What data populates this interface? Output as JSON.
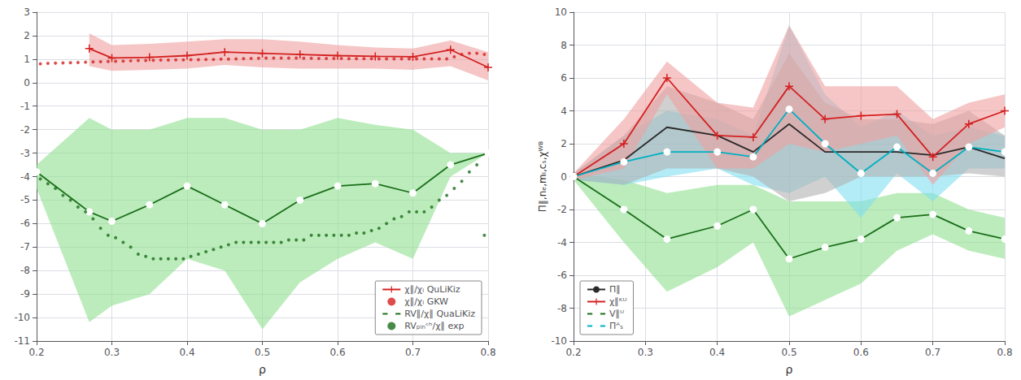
{
  "chart_data": [
    {
      "type": "line",
      "xlabel": "ρ",
      "xlim": [
        0.2,
        0.8
      ],
      "xticks": [
        0.2,
        0.3,
        0.4,
        0.5,
        0.6,
        0.7,
        0.8
      ],
      "ylim": [
        -11,
        3
      ],
      "yticks": [
        3,
        2,
        1,
        0,
        -1,
        -2,
        -3,
        -4,
        -5,
        -6,
        -7,
        -8,
        -9,
        -10,
        -11
      ],
      "grid": true,
      "legend": "lower right",
      "series": [
        {
          "type": "band",
          "color": "#f0a0a0",
          "x": [
            0.27,
            0.3,
            0.35,
            0.4,
            0.45,
            0.5,
            0.55,
            0.6,
            0.65,
            0.7,
            0.75,
            0.8
          ],
          "lower": [
            0.7,
            0.5,
            0.55,
            0.6,
            0.75,
            0.65,
            0.6,
            0.6,
            0.6,
            0.55,
            0.7,
            0.1
          ],
          "upper": [
            2.1,
            1.6,
            1.65,
            1.75,
            1.85,
            1.85,
            1.75,
            1.6,
            1.5,
            1.45,
            1.8,
            1.3
          ]
        },
        {
          "type": "band",
          "color": "#90e090",
          "x": [
            0.2,
            0.27,
            0.3,
            0.35,
            0.4,
            0.45,
            0.5,
            0.55,
            0.6,
            0.65,
            0.7,
            0.75,
            0.8
          ],
          "lower": [
            -4.5,
            -10.2,
            -9.5,
            -9.0,
            -7.5,
            -8.0,
            -10.5,
            -8.5,
            -7.5,
            -6.8,
            -7.5,
            -4.0,
            -3.0
          ],
          "upper": [
            -3.5,
            -1.5,
            -2.0,
            -2.0,
            -1.5,
            -1.5,
            -2.0,
            -2.0,
            -1.5,
            -1.8,
            -2.0,
            -3.0,
            -3.0
          ]
        },
        {
          "name": "χ∥/χᵢ QuLiKiz",
          "type": "line",
          "color": "#d42020",
          "marker": "plus",
          "line_style": "solid",
          "x": [
            0.27,
            0.3,
            0.35,
            0.4,
            0.45,
            0.5,
            0.55,
            0.6,
            0.65,
            0.7,
            0.75,
            0.8
          ],
          "values": [
            1.45,
            1.05,
            1.08,
            1.15,
            1.3,
            1.25,
            1.2,
            1.15,
            1.12,
            1.1,
            1.4,
            0.65
          ]
        },
        {
          "name": "χ∥/χᵢ GKW",
          "type": "scatter",
          "color": "#d42020",
          "marker": "dot",
          "line_style": "none",
          "x": [
            0.205,
            0.215,
            0.225,
            0.235,
            0.245,
            0.255,
            0.265,
            0.275,
            0.285,
            0.295,
            0.305,
            0.315,
            0.325,
            0.335,
            0.345,
            0.355,
            0.365,
            0.375,
            0.385,
            0.395,
            0.405,
            0.415,
            0.425,
            0.435,
            0.445,
            0.455,
            0.465,
            0.475,
            0.485,
            0.495,
            0.505,
            0.515,
            0.525,
            0.535,
            0.545,
            0.555,
            0.565,
            0.575,
            0.585,
            0.595,
            0.605,
            0.615,
            0.625,
            0.635,
            0.645,
            0.655,
            0.665,
            0.675,
            0.685,
            0.695,
            0.705,
            0.715,
            0.725,
            0.735,
            0.745,
            0.755,
            0.765,
            0.775,
            0.785,
            0.795
          ],
          "values": [
            0.8,
            0.82,
            0.83,
            0.84,
            0.85,
            0.86,
            0.87,
            0.88,
            0.89,
            0.9,
            0.91,
            0.92,
            0.93,
            0.94,
            0.94,
            0.95,
            0.96,
            0.96,
            0.97,
            0.97,
            0.98,
            0.98,
            0.99,
            0.99,
            1.0,
            1.0,
            1.01,
            1.02,
            1.03,
            1.04,
            1.05,
            1.05,
            1.05,
            1.05,
            1.05,
            1.04,
            1.04,
            1.03,
            1.03,
            1.03,
            1.03,
            1.02,
            1.02,
            1.02,
            1.02,
            1.01,
            1.01,
            1.01,
            1.01,
            1.01,
            1.01,
            1.01,
            1.01,
            1.01,
            1.01,
            1.1,
            1.2,
            1.25,
            1.25,
            1.2
          ]
        },
        {
          "name": "RV∥/χ∥ QuaLiKiz",
          "type": "line",
          "color": "#1a6e1a",
          "marker": "circle",
          "line_style": "solid",
          "x": [
            0.2,
            0.27,
            0.3,
            0.35,
            0.4,
            0.45,
            0.5,
            0.55,
            0.6,
            0.65,
            0.7,
            0.75,
            0.8
          ],
          "values": [
            -3.8,
            -5.5,
            -5.9,
            -5.2,
            -4.4,
            -5.2,
            -6.0,
            -5.0,
            -4.4,
            -4.3,
            -4.7,
            -3.5,
            -3.0
          ]
        },
        {
          "name": "RVₚᵢₙᶜʰ/χ∥ exp",
          "type": "scatter",
          "color": "#1a6e1a",
          "marker": "dot",
          "line_style": "none",
          "x": [
            0.205,
            0.215,
            0.225,
            0.235,
            0.245,
            0.255,
            0.265,
            0.275,
            0.285,
            0.295,
            0.305,
            0.315,
            0.325,
            0.335,
            0.345,
            0.355,
            0.365,
            0.375,
            0.385,
            0.395,
            0.405,
            0.415,
            0.425,
            0.435,
            0.445,
            0.455,
            0.465,
            0.475,
            0.485,
            0.495,
            0.505,
            0.515,
            0.525,
            0.535,
            0.545,
            0.555,
            0.565,
            0.575,
            0.585,
            0.595,
            0.605,
            0.615,
            0.625,
            0.635,
            0.645,
            0.655,
            0.665,
            0.675,
            0.685,
            0.695,
            0.705,
            0.715,
            0.725,
            0.735,
            0.745,
            0.755,
            0.765,
            0.775,
            0.785,
            0.795
          ],
          "values": [
            -4.1,
            -4.3,
            -4.5,
            -4.8,
            -5.0,
            -5.3,
            -5.5,
            -5.8,
            -6.2,
            -6.5,
            -6.6,
            -6.8,
            -7.0,
            -7.3,
            -7.4,
            -7.5,
            -7.5,
            -7.5,
            -7.5,
            -7.5,
            -7.4,
            -7.3,
            -7.2,
            -7.1,
            -7.0,
            -6.9,
            -6.8,
            -6.8,
            -6.8,
            -6.8,
            -6.8,
            -6.8,
            -6.8,
            -6.7,
            -6.7,
            -6.7,
            -6.5,
            -6.5,
            -6.5,
            -6.5,
            -6.5,
            -6.5,
            -6.4,
            -6.4,
            -6.3,
            -6.2,
            -6.0,
            -5.8,
            -5.7,
            -5.5,
            -5.5,
            -5.5,
            -5.3,
            -5.0,
            -4.8,
            -4.5,
            -4.2,
            -3.8,
            -3.5,
            -6.5
          ]
        }
      ]
    },
    {
      "type": "line",
      "xlabel": "ρ",
      "ylabel": "Π∥,nₑ,mᵢ,cₛ,χᵂᴮ",
      "xlim": [
        0.2,
        0.8
      ],
      "xticks": [
        0.2,
        0.3,
        0.4,
        0.5,
        0.6,
        0.7,
        0.8
      ],
      "ylim": [
        -10,
        10
      ],
      "yticks": [
        10,
        8,
        6,
        4,
        2,
        0,
        -2,
        -4,
        -6,
        -8,
        -10
      ],
      "grid": true,
      "legend": "lower left",
      "series": [
        {
          "type": "band",
          "color": "#90e090",
          "x": [
            0.2,
            0.27,
            0.33,
            0.4,
            0.45,
            0.5,
            0.55,
            0.6,
            0.65,
            0.7,
            0.75,
            0.8
          ],
          "lower": [
            -0.2,
            -4.0,
            -7.0,
            -5.5,
            -4.0,
            -8.5,
            -7.5,
            -6.5,
            -4.5,
            -3.5,
            -4.5,
            -5.0
          ],
          "upper": [
            0.2,
            -0.2,
            -1.0,
            -0.5,
            -0.5,
            -1.5,
            -1.5,
            -1.5,
            -1.0,
            -1.0,
            -2.0,
            -2.5
          ]
        },
        {
          "type": "band",
          "color": "#80e0f0",
          "x": [
            0.2,
            0.27,
            0.33,
            0.4,
            0.45,
            0.5,
            0.55,
            0.6,
            0.65,
            0.7,
            0.75,
            0.8
          ],
          "lower": [
            -0.2,
            -0.5,
            0.0,
            0.5,
            -0.5,
            -1.0,
            0.0,
            -2.5,
            0.2,
            -1.5,
            0.5,
            0.5
          ],
          "upper": [
            0.2,
            2.5,
            4.0,
            3.5,
            2.5,
            9.2,
            5.0,
            3.0,
            4.0,
            2.5,
            3.0,
            2.5
          ]
        },
        {
          "type": "band",
          "color": "#b0b0b0",
          "x": [
            0.2,
            0.27,
            0.33,
            0.4,
            0.45,
            0.5,
            0.55,
            0.6,
            0.65,
            0.7,
            0.75,
            0.8
          ],
          "lower": [
            -0.2,
            -0.5,
            0.5,
            0.5,
            0.0,
            -1.5,
            -1.0,
            0.0,
            0.0,
            0.0,
            0.2,
            0.0
          ],
          "upper": [
            0.2,
            2.5,
            5.5,
            4.5,
            3.5,
            7.5,
            4.5,
            3.5,
            3.5,
            3.2,
            4.0,
            2.5
          ]
        },
        {
          "type": "band",
          "color": "#f0a0a0",
          "x": [
            0.2,
            0.27,
            0.33,
            0.4,
            0.45,
            0.5,
            0.55,
            0.6,
            0.65,
            0.7,
            0.75,
            0.8
          ],
          "lower": [
            -0.2,
            0.5,
            5.0,
            0.5,
            0.5,
            2.0,
            1.5,
            2.0,
            2.5,
            -0.5,
            2.0,
            3.0
          ],
          "upper": [
            0.2,
            3.5,
            7.0,
            4.5,
            4.2,
            9.2,
            5.5,
            5.5,
            5.5,
            3.5,
            4.5,
            5.0
          ]
        },
        {
          "name": "Π∥",
          "type": "line",
          "color": "#2a2a2a",
          "marker": "none",
          "line_style": "solid",
          "x": [
            0.2,
            0.27,
            0.33,
            0.4,
            0.45,
            0.5,
            0.55,
            0.6,
            0.65,
            0.7,
            0.75,
            0.8
          ],
          "values": [
            0.0,
            1.0,
            3.0,
            2.5,
            1.5,
            3.2,
            1.5,
            1.5,
            1.5,
            1.3,
            1.8,
            1.1
          ]
        },
        {
          "name": "χ∥ᴷᵁ",
          "type": "line",
          "color": "#d42020",
          "marker": "plus",
          "line_style": "solid",
          "x": [
            0.2,
            0.27,
            0.33,
            0.4,
            0.45,
            0.5,
            0.55,
            0.6,
            0.65,
            0.7,
            0.75,
            0.8
          ],
          "values": [
            0.0,
            2.0,
            6.0,
            2.5,
            2.4,
            5.5,
            3.5,
            3.7,
            3.8,
            1.2,
            3.2,
            4.0
          ]
        },
        {
          "name": "V∥ᵁ",
          "type": "line",
          "color": "#1a6e1a",
          "marker": "circle",
          "line_style": "solid",
          "x": [
            0.2,
            0.27,
            0.33,
            0.4,
            0.45,
            0.5,
            0.55,
            0.6,
            0.65,
            0.7,
            0.75,
            0.8
          ],
          "values": [
            0.0,
            -2.0,
            -3.8,
            -3.0,
            -2.0,
            -5.0,
            -4.3,
            -3.8,
            -2.5,
            -2.3,
            -3.3,
            -3.8
          ]
        },
        {
          "name": "Πᴬₛ",
          "type": "line",
          "color": "#00b0c0",
          "marker": "circle",
          "line_style": "solid",
          "x": [
            0.2,
            0.27,
            0.33,
            0.4,
            0.45,
            0.5,
            0.55,
            0.6,
            0.65,
            0.7,
            0.75,
            0.8
          ],
          "values": [
            0.0,
            0.9,
            1.5,
            1.5,
            1.2,
            4.1,
            2.0,
            0.2,
            1.8,
            0.2,
            1.8,
            1.5
          ]
        }
      ]
    }
  ]
}
